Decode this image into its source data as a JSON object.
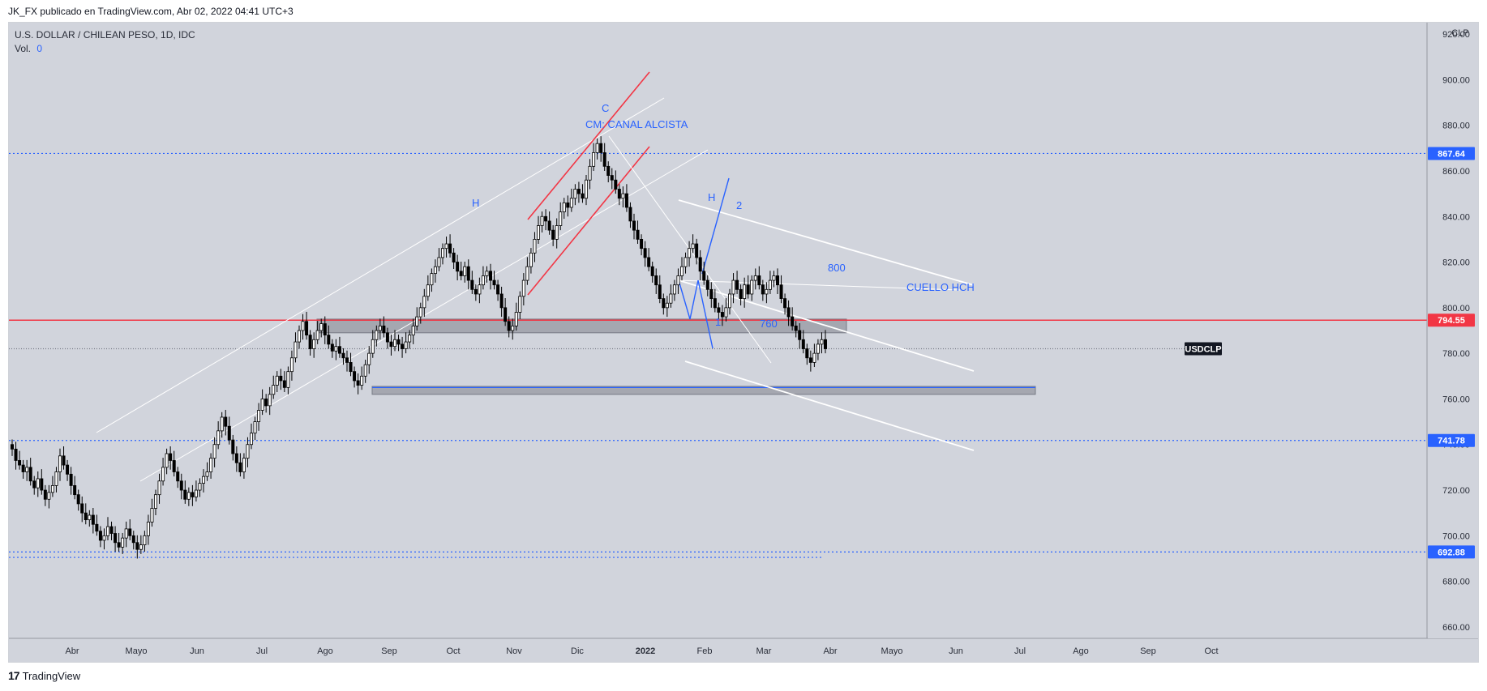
{
  "header": {
    "published_by": "JK_FX publicado en TradingView.com, Abr 02, 2022 04:41 UTC+3"
  },
  "legend": {
    "symbol_line": "U.S. DOLLAR / CHILEAN PESO, 1D, IDC",
    "vol_label": "Vol.",
    "vol_value": "0"
  },
  "footer": {
    "brand": "TradingView",
    "logo_glyph": "17"
  },
  "colors": {
    "background": "#d1d4dc",
    "frame": "#ffffff",
    "up_candle": "#ffffff",
    "down_candle": "#000000",
    "red_line": "#f23645",
    "blue_line": "#2962ff",
    "annotation_text": "#2962ff",
    "white_line": "#ffffff",
    "zone_fill": "#9598a1"
  },
  "chart_data": {
    "type": "candlestick",
    "symbol": "USDCLP",
    "currency": "CLP",
    "ylim": [
      655,
      925
    ],
    "y_ticks": [
      660,
      680,
      700,
      720,
      740,
      760,
      780,
      800,
      820,
      840,
      860,
      880,
      900,
      920
    ],
    "x_ticks": [
      "Abr",
      "Mayo",
      "Jun",
      "Jul",
      "Ago",
      "Sep",
      "Oct",
      "Nov",
      "Dic",
      "2022",
      "Feb",
      "Mar",
      "Abr",
      "Mayo",
      "Jun",
      "Jul",
      "Ago",
      "Sep",
      "Oct"
    ],
    "price_labels": [
      {
        "value": 867.64,
        "text": "867.64",
        "style": "blue"
      },
      {
        "value": 794.55,
        "text": "794.55",
        "style": "red"
      },
      {
        "value": 782.0,
        "text": "USDCLP",
        "style": "dark"
      },
      {
        "value": 741.78,
        "text": "741.78",
        "style": "blue"
      },
      {
        "value": 692.88,
        "text": "692.88",
        "style": "blue"
      }
    ],
    "horizontal_levels": [
      {
        "value": 867.64,
        "style": "blue-dotted"
      },
      {
        "value": 794.55,
        "style": "red-solid"
      },
      {
        "value": 782.0,
        "style": "gray-dotted"
      },
      {
        "value": 741.78,
        "style": "blue-dotted"
      },
      {
        "value": 692.88,
        "style": "blue-dotted"
      },
      {
        "value": 690.5,
        "style": "blue-dotted-short"
      },
      {
        "value": 765.0,
        "style": "blue-solid-short"
      }
    ],
    "zones": [
      {
        "from": 789,
        "to": 795,
        "label": "resistance"
      },
      {
        "from": 762,
        "to": 765.5,
        "label": "support"
      }
    ],
    "annotations": [
      "C",
      "CM: CANAL ALCISTA",
      "H",
      "H",
      "2",
      "1",
      "800",
      "760",
      "CUELLO HCH"
    ],
    "candles_close": [
      738,
      733,
      731,
      728,
      730,
      724,
      721,
      725,
      720,
      716,
      719,
      722,
      728,
      735,
      731,
      727,
      722,
      718,
      714,
      710,
      707,
      709,
      705,
      702,
      698,
      700,
      704,
      701,
      697,
      695,
      699,
      703,
      700,
      697,
      694,
      696,
      700,
      706,
      712,
      718,
      724,
      730,
      736,
      733,
      728,
      724,
      720,
      716,
      719,
      717,
      720,
      723,
      726,
      728,
      734,
      740,
      746,
      752,
      748,
      742,
      736,
      732,
      728,
      734,
      740,
      745,
      750,
      755,
      760,
      757,
      762,
      766,
      770,
      768,
      765,
      772,
      778,
      785,
      790,
      794,
      788,
      782,
      786,
      790,
      793,
      788,
      784,
      781,
      783,
      780,
      778,
      776,
      772,
      768,
      766,
      770,
      775,
      780,
      786,
      790,
      792,
      789,
      785,
      783,
      786,
      784,
      782,
      785,
      788,
      792,
      796,
      800,
      805,
      810,
      815,
      818,
      822,
      826,
      828,
      824,
      820,
      816,
      814,
      818,
      812,
      808,
      806,
      810,
      814,
      816,
      812,
      810,
      806,
      800,
      794,
      790,
      792,
      798,
      805,
      812,
      818,
      824,
      830,
      836,
      840,
      838,
      834,
      830,
      836,
      842,
      846,
      844,
      848,
      852,
      850,
      848,
      856,
      862,
      868,
      872,
      868,
      862,
      858,
      856,
      852,
      848,
      850,
      844,
      838,
      834,
      830,
      826,
      822,
      818,
      814,
      810,
      804,
      800,
      802,
      806,
      810,
      814,
      818,
      822,
      826,
      828,
      822,
      816,
      812,
      808,
      804,
      800,
      798,
      796,
      800,
      806,
      812,
      808,
      804,
      810,
      806,
      812,
      814,
      810,
      806,
      808,
      812,
      814,
      810,
      804,
      800,
      796,
      792,
      790,
      786,
      782,
      778,
      776,
      780,
      784,
      786,
      782
    ]
  }
}
